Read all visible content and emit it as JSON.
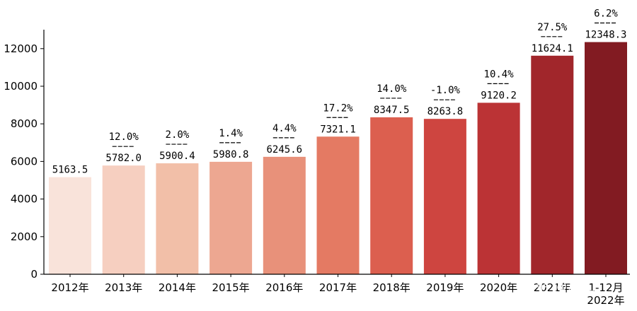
{
  "chart_data": {
    "type": "bar",
    "categories": [
      "2012年",
      "2013年",
      "2014年",
      "2015年",
      "2016年",
      "2017年",
      "2018年",
      "2019年",
      "2020年",
      "2021年",
      "1-12月\n2022年"
    ],
    "values": [
      5163.5,
      5782.0,
      5900.4,
      5980.8,
      6245.6,
      7321.1,
      8347.5,
      8263.8,
      9120.2,
      11624.1,
      12348.3
    ],
    "value_labels": [
      "5163.5",
      "5782.0",
      "5900.4",
      "5980.8",
      "6245.6",
      "7321.1",
      "8347.5",
      "8263.8",
      "9120.2",
      "11624.1",
      "12348.3"
    ],
    "growth_labels": [
      "",
      "12.0%",
      "2.0%",
      "1.4%",
      "4.4%",
      "17.2%",
      "14.0%",
      "-1.0%",
      "10.4%",
      "27.5%",
      "6.2%"
    ],
    "colors": [
      "#f9e3da",
      "#f6cfc0",
      "#f2bfa8",
      "#eda791",
      "#e8917a",
      "#e47a63",
      "#dc5f4f",
      "#ce4540",
      "#bb3335",
      "#a1262b",
      "#821b22"
    ],
    "yticks": [
      0,
      2000,
      4000,
      6000,
      8000,
      10000,
      12000
    ],
    "ylim": [
      0,
      13000
    ],
    "grid": false,
    "title": "",
    "xlabel": "",
    "ylabel": ""
  },
  "watermark": "知乎 @息山"
}
